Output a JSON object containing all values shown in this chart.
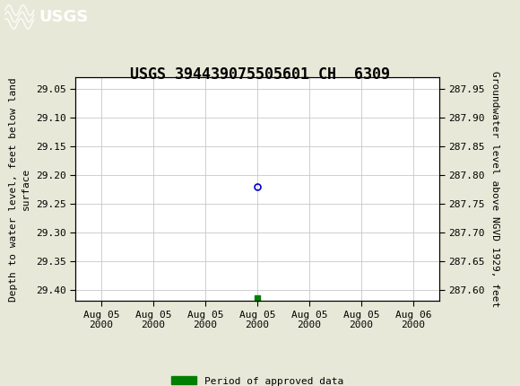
{
  "title": "USGS 394439075505601 CH  6309",
  "ylabel_left": "Depth to water level, feet below land\nsurface",
  "ylabel_right": "Groundwater level above NGVD 1929, feet",
  "ylim_left": [
    29.42,
    29.03
  ],
  "ylim_right": [
    287.58,
    287.97
  ],
  "yticks_left": [
    29.05,
    29.1,
    29.15,
    29.2,
    29.25,
    29.3,
    29.35,
    29.4
  ],
  "yticks_right": [
    287.95,
    287.9,
    287.85,
    287.8,
    287.75,
    287.7,
    287.65,
    287.6
  ],
  "xlim": [
    -0.5,
    6.5
  ],
  "xtick_positions": [
    0,
    1,
    2,
    3,
    4,
    5,
    6
  ],
  "xtick_labels": [
    "Aug 05\n2000",
    "Aug 05\n2000",
    "Aug 05\n2000",
    "Aug 05\n2000",
    "Aug 05\n2000",
    "Aug 05\n2000",
    "Aug 06\n2000"
  ],
  "data_point_x": 3.0,
  "data_point_y": 29.22,
  "data_point_color": "#0000cc",
  "green_square_x": 3.0,
  "green_square_y": 29.415,
  "green_square_color": "#008000",
  "header_color": "#1a6b3c",
  "background_color": "#e8e8d8",
  "plot_bg_color": "#ffffff",
  "grid_color": "#c8c8c8",
  "legend_label": "Period of approved data",
  "legend_color": "#008000",
  "title_fontsize": 12,
  "axis_label_fontsize": 8,
  "tick_fontsize": 8,
  "font_family": "DejaVu Sans Mono"
}
